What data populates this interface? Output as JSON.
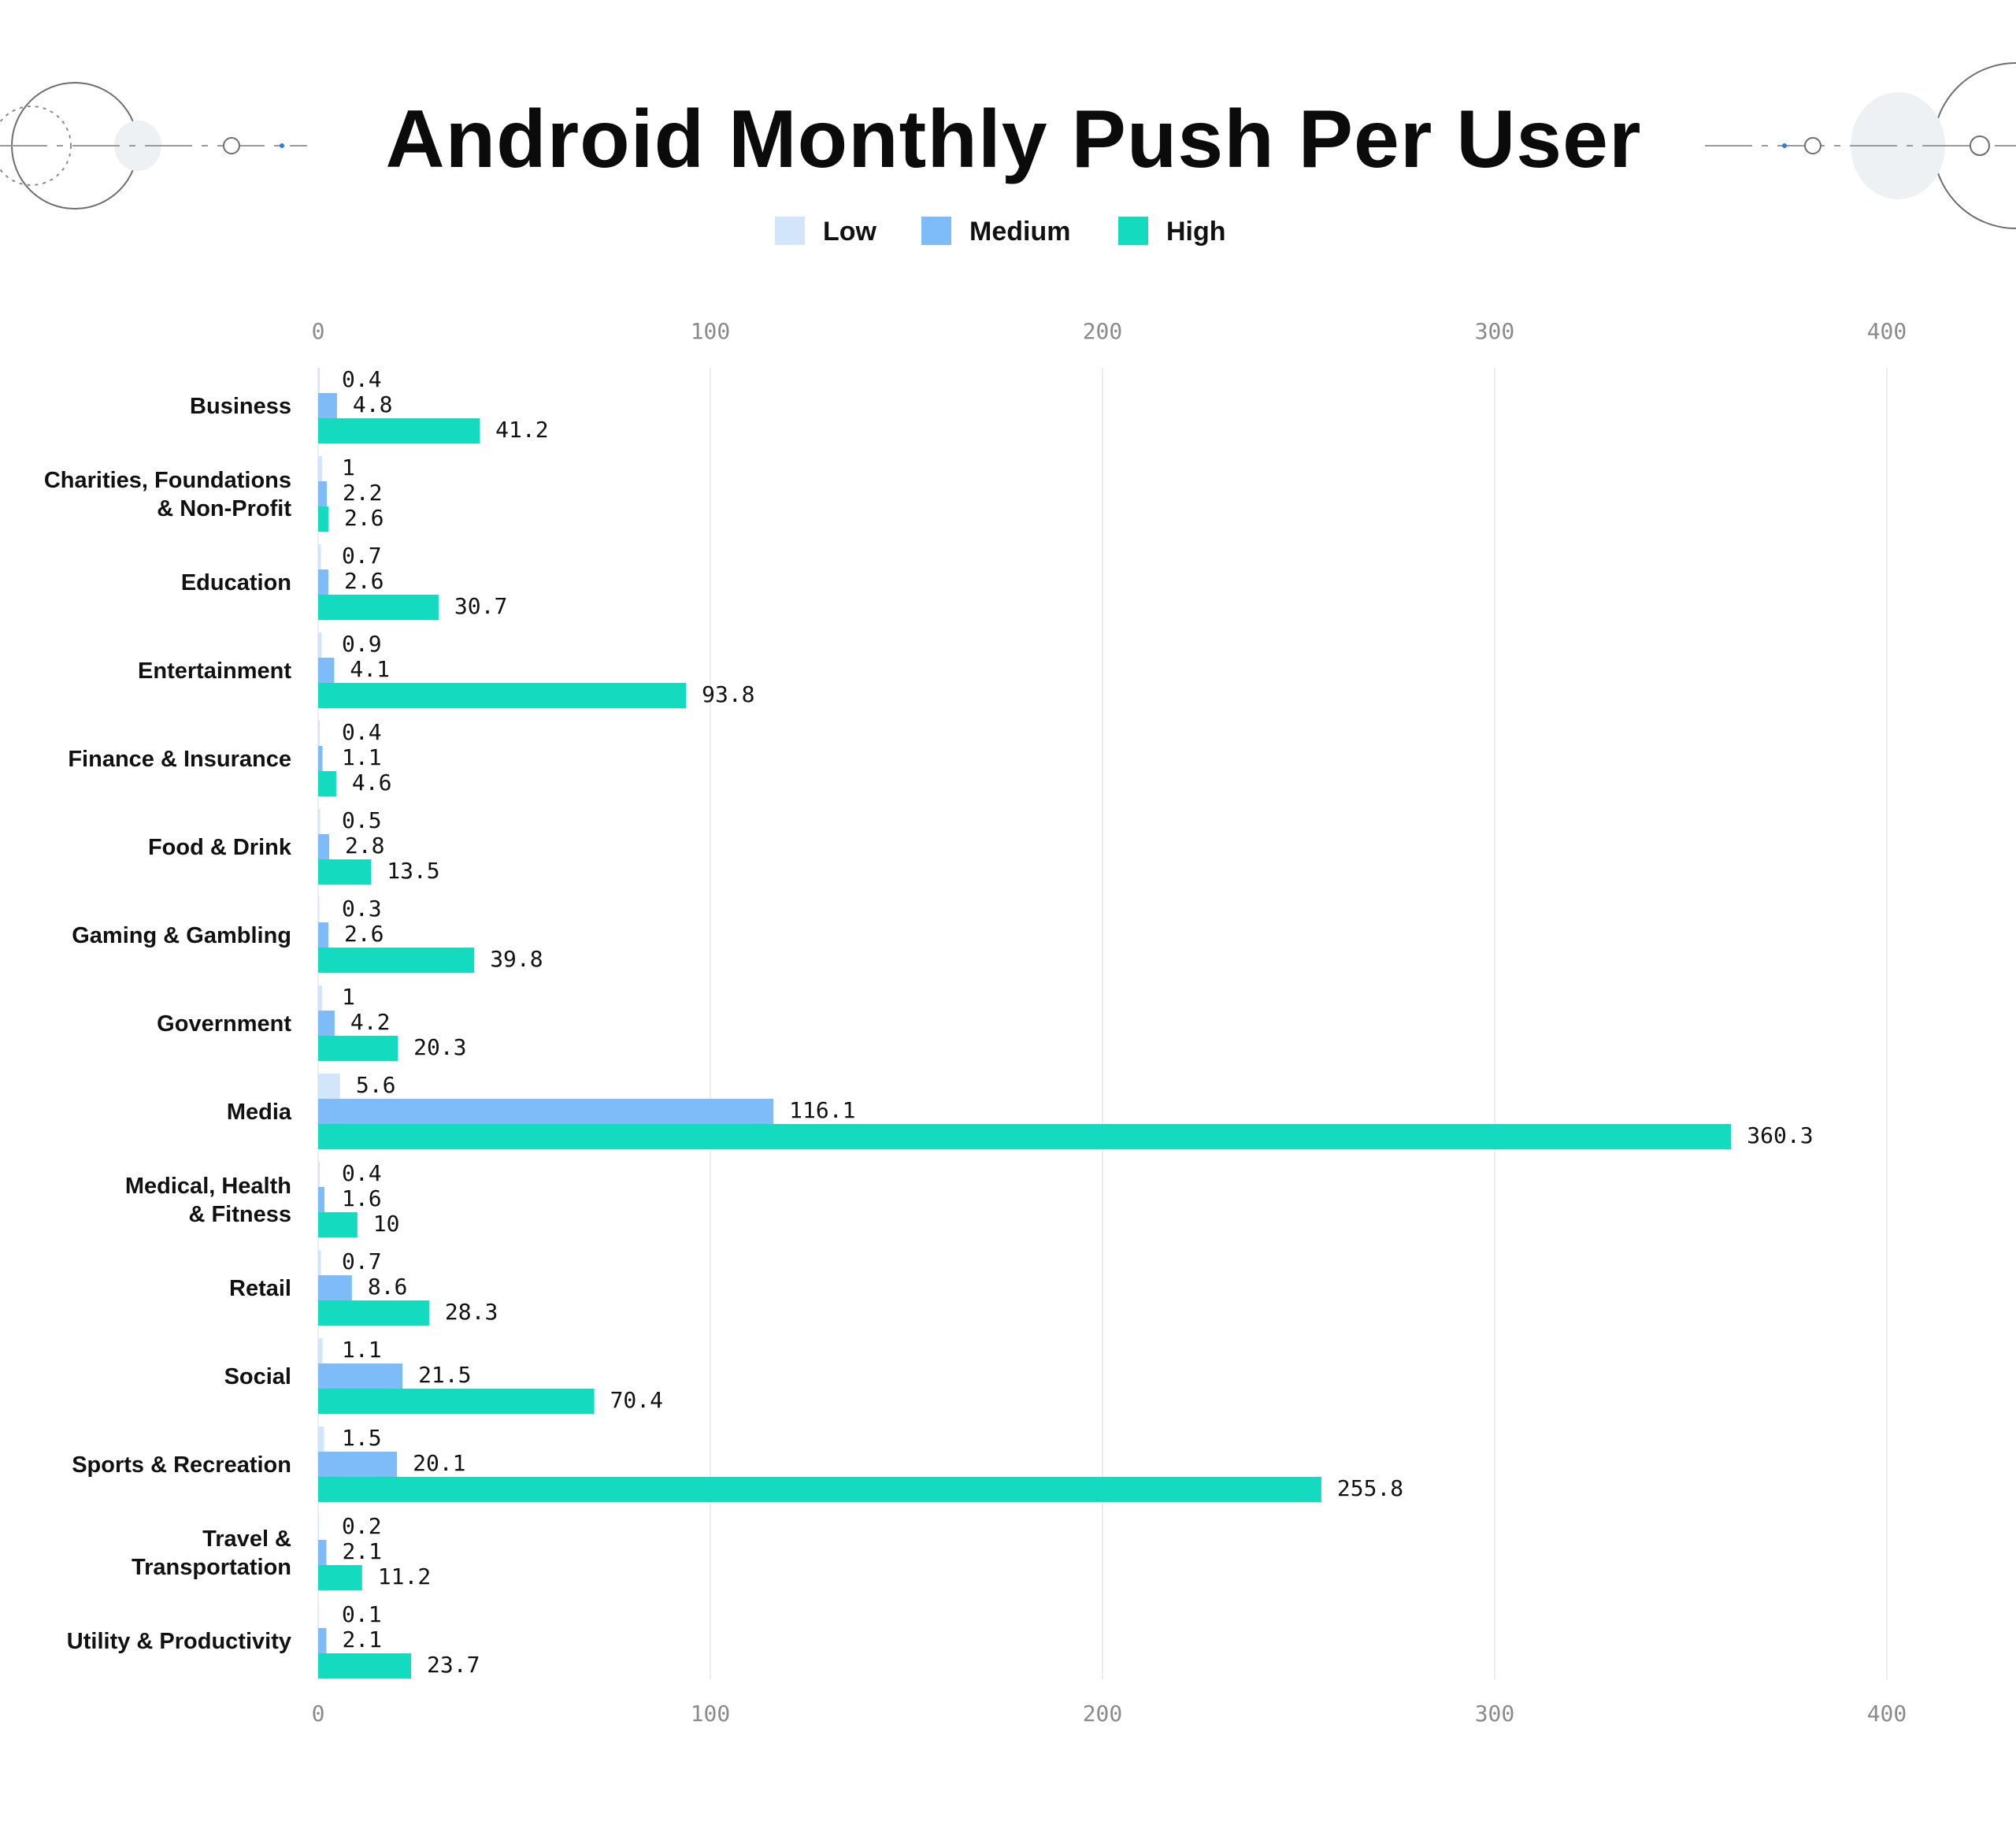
{
  "chart_data": {
    "type": "bar",
    "orientation": "horizontal",
    "title": "Android Monthly Push Per User",
    "xlabel": "",
    "ylabel": "",
    "xlim": [
      0,
      400
    ],
    "x_ticks": [
      "0",
      "100",
      "200",
      "300",
      "400"
    ],
    "grid": true,
    "legend_position": "top-center",
    "categories": [
      [
        "Business"
      ],
      [
        "Charities, Foundations",
        "& Non-Profit"
      ],
      [
        "Education"
      ],
      [
        "Entertainment"
      ],
      [
        "Finance & Insurance"
      ],
      [
        "Food & Drink"
      ],
      [
        "Gaming & Gambling"
      ],
      [
        "Government"
      ],
      [
        "Media"
      ],
      [
        "Medical, Health",
        "& Fitness"
      ],
      [
        "Retail"
      ],
      [
        "Social"
      ],
      [
        "Sports & Recreation"
      ],
      [
        "Travel &",
        "Transportation"
      ],
      [
        "Utility & Productivity"
      ]
    ],
    "series": [
      {
        "name": "Low",
        "color": "#d3e5fb",
        "values": [
          0.4,
          1,
          0.7,
          0.9,
          0.4,
          0.5,
          0.3,
          1,
          5.6,
          0.4,
          0.7,
          1.1,
          1.5,
          0.2,
          0.1
        ]
      },
      {
        "name": "Medium",
        "color": "#7dbbf9",
        "values": [
          4.8,
          2.2,
          2.6,
          4.1,
          1.1,
          2.8,
          2.6,
          4.2,
          116.1,
          1.6,
          8.6,
          21.5,
          20.1,
          2.1,
          2.1
        ]
      },
      {
        "name": "High",
        "color": "#14dbc0",
        "values": [
          41.2,
          2.6,
          30.7,
          93.8,
          4.6,
          13.5,
          39.8,
          20.3,
          360.3,
          10,
          28.3,
          70.4,
          255.8,
          11.2,
          23.7
        ]
      }
    ]
  }
}
